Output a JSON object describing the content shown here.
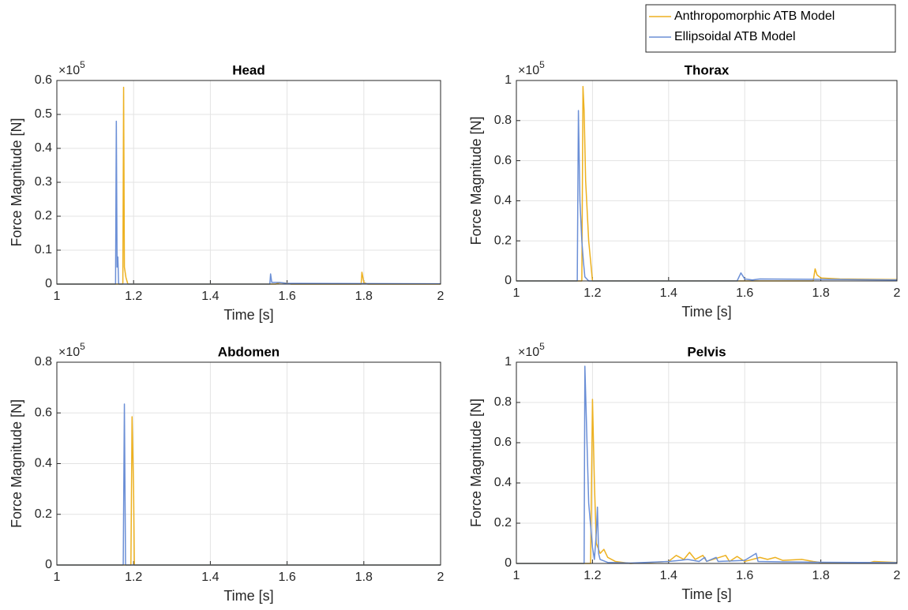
{
  "chart_data": [
    {
      "type": "line",
      "title": "Head",
      "xlabel": "Time [s]",
      "ylabel": "Force Magnitude [N]",
      "y_scale_label": {
        "base": "×10",
        "exponent": "5"
      },
      "xlim": [
        1,
        2
      ],
      "xticks": [
        1,
        1.2,
        1.4,
        1.6,
        1.8,
        2
      ],
      "ylim": [
        0,
        0.6
      ],
      "yticks": [
        0,
        0.1,
        0.2,
        0.3,
        0.4,
        0.5,
        0.6
      ],
      "grid": true,
      "series": [
        {
          "name": "Anthropomorphic ATB Model",
          "color": "#edb120",
          "x": [
            1,
            1.172,
            1.174,
            1.176,
            1.18,
            1.185,
            1.57,
            1.58,
            1.6,
            1.61,
            1.793,
            1.795,
            1.8,
            1.81,
            2
          ],
          "values": [
            0,
            0,
            0.58,
            0.05,
            0.02,
            0,
            0,
            0.004,
            0.003,
            0,
            0,
            0.035,
            0.005,
            0,
            0
          ]
        },
        {
          "name": "Ellipsoidal ATB Model",
          "color": "#6b8fd6",
          "x": [
            1,
            1.153,
            1.155,
            1.157,
            1.159,
            1.161,
            1.555,
            1.557,
            1.56,
            1.58,
            1.6,
            2
          ],
          "values": [
            0,
            0,
            0.48,
            0.05,
            0.08,
            0,
            0,
            0.03,
            0.005,
            0.005,
            0.002,
            0.001
          ]
        }
      ]
    },
    {
      "type": "line",
      "title": "Thorax",
      "xlabel": "Time [s]",
      "ylabel": "Force Magnitude [N]",
      "y_scale_label": {
        "base": "×10",
        "exponent": "5"
      },
      "xlim": [
        1,
        2
      ],
      "xticks": [
        1,
        1.2,
        1.4,
        1.6,
        1.8,
        2
      ],
      "ylim": [
        0,
        1
      ],
      "yticks": [
        0,
        0.2,
        0.4,
        0.6,
        0.8,
        1
      ],
      "grid": true,
      "series": [
        {
          "color": "#edb120",
          "x": [
            1,
            1.172,
            1.175,
            1.178,
            1.182,
            1.19,
            1.195,
            1.2,
            1.78,
            1.785,
            1.79,
            1.8,
            1.85,
            2
          ],
          "values": [
            0,
            0,
            0.97,
            0.85,
            0.5,
            0.2,
            0.1,
            0,
            0,
            0.06,
            0.03,
            0.015,
            0.01,
            0.007
          ]
        },
        {
          "color": "#6b8fd6",
          "x": [
            1,
            1.16,
            1.163,
            1.167,
            1.172,
            1.176,
            1.18,
            1.19,
            1.58,
            1.59,
            1.6,
            1.62,
            1.64,
            1.8,
            2
          ],
          "values": [
            0,
            0,
            0.85,
            0.4,
            0.2,
            0.1,
            0.02,
            0,
            0,
            0.04,
            0.01,
            0.005,
            0.01,
            0.008,
            0.005
          ]
        }
      ]
    },
    {
      "type": "line",
      "title": "Abdomen",
      "xlabel": "Time [s]",
      "ylabel": "Force Magnitude [N]",
      "y_scale_label": {
        "base": "×10",
        "exponent": "5"
      },
      "xlim": [
        1,
        2
      ],
      "xticks": [
        1,
        1.2,
        1.4,
        1.6,
        1.8,
        2
      ],
      "ylim": [
        0,
        0.8
      ],
      "yticks": [
        0,
        0.2,
        0.4,
        0.6,
        0.8
      ],
      "grid": true,
      "series": [
        {
          "color": "#edb120",
          "x": [
            1,
            1.193,
            1.196,
            1.2,
            1.202,
            2
          ],
          "values": [
            0,
            0,
            0.585,
            0.3,
            0,
            0
          ]
        },
        {
          "color": "#6b8fd6",
          "x": [
            1,
            1.173,
            1.176,
            1.179,
            2
          ],
          "values": [
            0,
            0,
            0.635,
            0,
            0
          ]
        }
      ]
    },
    {
      "type": "line",
      "title": "Pelvis",
      "xlabel": "Time [s]",
      "ylabel": "Force Magnitude [N]",
      "y_scale_label": {
        "base": "×10",
        "exponent": "5"
      },
      "xlim": [
        1,
        2
      ],
      "xticks": [
        1,
        1.2,
        1.4,
        1.6,
        1.8,
        2
      ],
      "ylim": [
        0,
        1
      ],
      "yticks": [
        0,
        0.2,
        0.4,
        0.6,
        0.8,
        1
      ],
      "grid": true,
      "series": [
        {
          "color": "#edb120",
          "x": [
            1,
            1.195,
            1.2,
            1.205,
            1.21,
            1.22,
            1.23,
            1.24,
            1.26,
            1.3,
            1.4,
            1.42,
            1.44,
            1.455,
            1.47,
            1.49,
            1.5,
            1.55,
            1.56,
            1.58,
            1.6,
            1.64,
            1.66,
            1.68,
            1.7,
            1.75,
            1.78,
            1.8,
            1.93,
            1.94,
            2
          ],
          "values": [
            0,
            0,
            0.815,
            0.4,
            0.1,
            0.05,
            0.07,
            0.03,
            0.01,
            0,
            0.01,
            0.04,
            0.02,
            0.055,
            0.02,
            0.04,
            0.01,
            0.04,
            0.01,
            0.035,
            0.01,
            0.03,
            0.02,
            0.03,
            0.015,
            0.02,
            0.01,
            0.005,
            0.005,
            0.01,
            0.005
          ]
        },
        {
          "color": "#6b8fd6",
          "x": [
            1,
            1.178,
            1.18,
            1.19,
            1.2,
            1.205,
            1.21,
            1.213,
            1.216,
            1.22,
            1.24,
            1.3,
            1.4,
            1.43,
            1.45,
            1.48,
            1.495,
            1.5,
            1.525,
            1.53,
            1.6,
            1.63,
            1.635,
            1.7,
            1.8,
            2
          ],
          "values": [
            0,
            0,
            0.98,
            0.3,
            0.08,
            0.02,
            0.15,
            0.28,
            0.05,
            0.02,
            0.005,
            0.002,
            0.01,
            0.015,
            0.02,
            0.01,
            0.03,
            0.01,
            0.03,
            0.01,
            0.015,
            0.05,
            0.01,
            0.008,
            0.006,
            0.004
          ]
        }
      ]
    }
  ]
}
